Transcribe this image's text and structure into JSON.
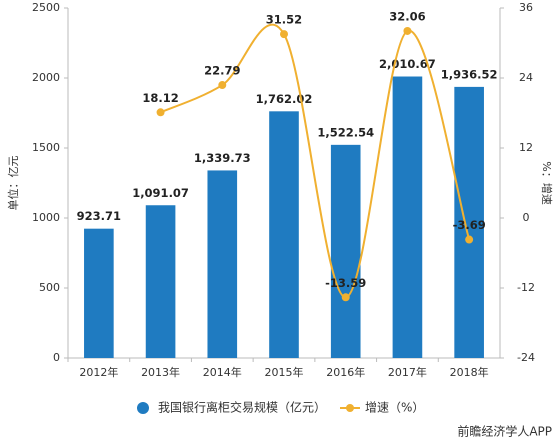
{
  "chart_data": {
    "type": "bar_line",
    "categories": [
      "2012年",
      "2013年",
      "2014年",
      "2015年",
      "2016年",
      "2017年",
      "2018年"
    ],
    "series": [
      {
        "name": "我国银行离柜交易规模（亿元）",
        "type": "bar",
        "color": "#1f7bc1",
        "values": [
          923.71,
          1091.07,
          1339.73,
          1762.02,
          1522.54,
          2010.67,
          1936.52
        ],
        "value_labels": [
          "923.71",
          "1,091.07",
          "1,339.73",
          "1,762.02",
          "1,522.54",
          "2,010.67",
          "1,936.52"
        ]
      },
      {
        "name": "增速（%）",
        "type": "line",
        "axis": "y2",
        "color": "#f0b030",
        "values": [
          null,
          18.12,
          22.79,
          31.52,
          -13.59,
          32.06,
          -3.69
        ]
      }
    ],
    "ylabel": "单位：亿元",
    "y2label": "%：增速",
    "ylim": [
      0,
      2500
    ],
    "yticks": [
      0,
      500,
      1000,
      1500,
      2000,
      2500
    ],
    "y2lim": [
      -24,
      36
    ],
    "y2ticks": [
      -24,
      -12,
      0,
      12,
      24,
      36
    ],
    "grid": false,
    "source": "前瞻经济学人APP"
  }
}
